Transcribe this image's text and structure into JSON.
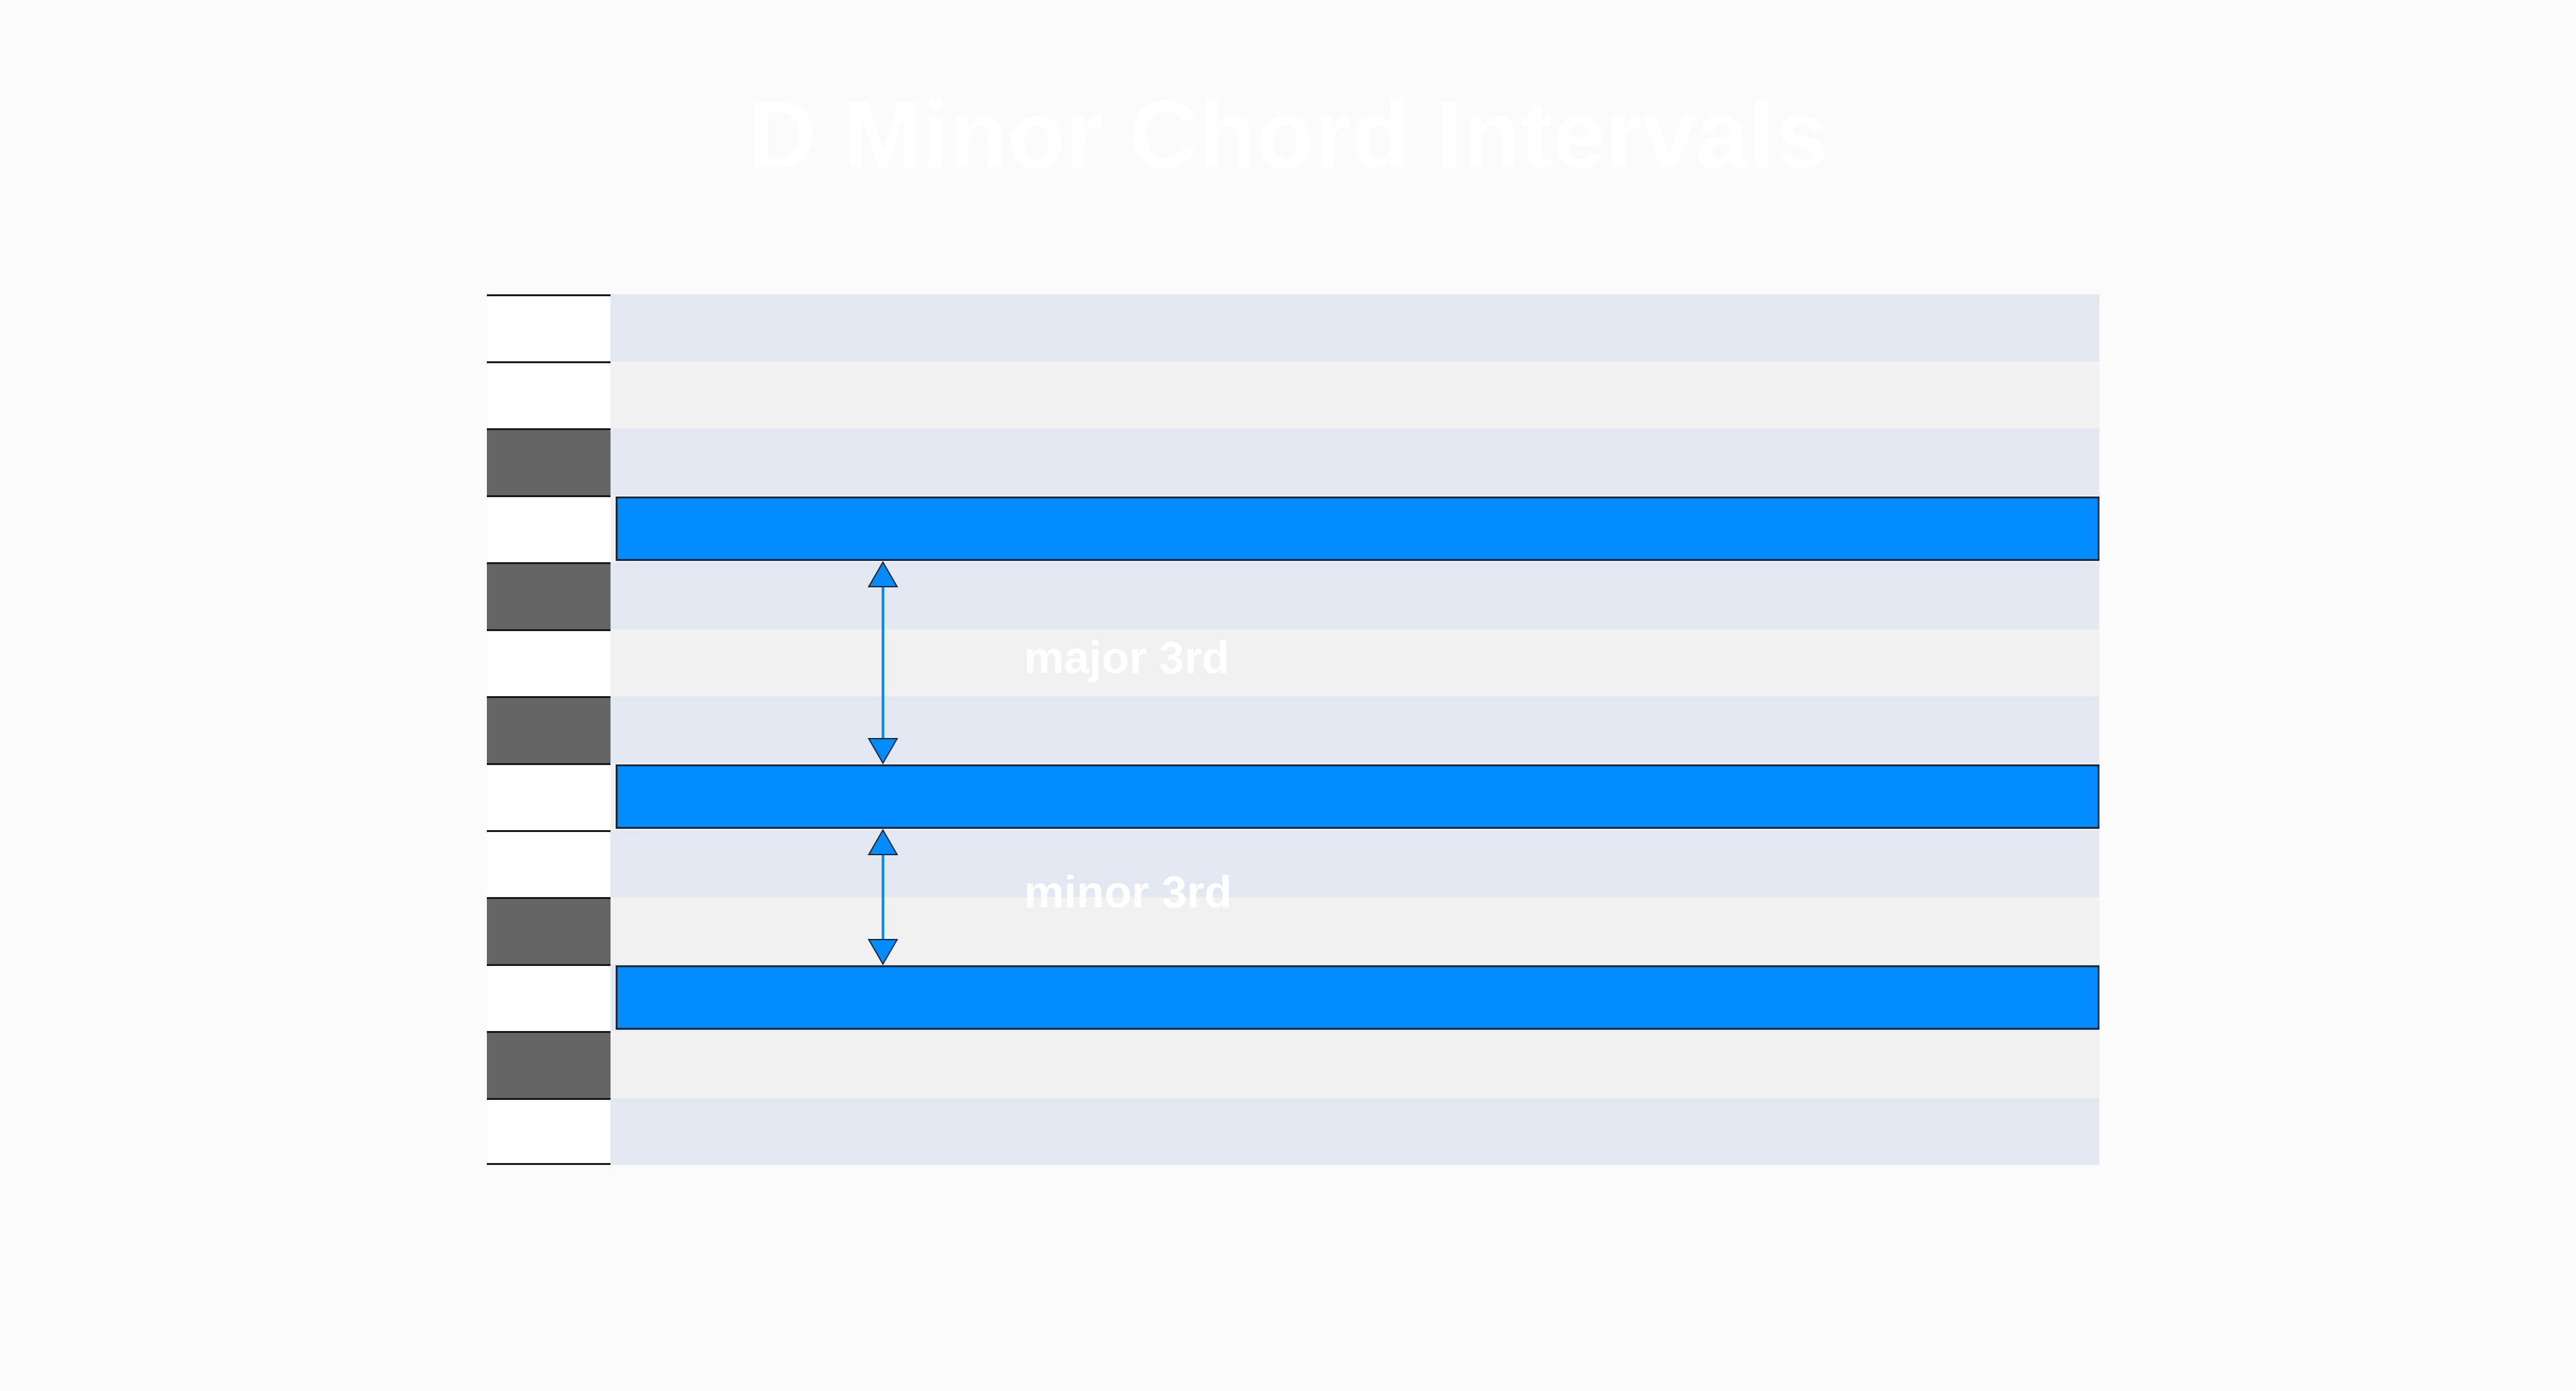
{
  "title": "D Minor Chord Intervals",
  "colors": {
    "background": "#fbfbfb",
    "note_fill": "#038cff",
    "lane_tone_a": "#e3e7f1",
    "lane_tone_b": "#f1f1f1",
    "white_key": "#ffffff",
    "black_key": "#656565",
    "label_text": "#ffffff"
  },
  "piano_roll": {
    "keys": [
      {
        "color": "white"
      },
      {
        "color": "white"
      },
      {
        "color": "black"
      },
      {
        "color": "white"
      },
      {
        "color": "black"
      },
      {
        "color": "white"
      },
      {
        "color": "black"
      },
      {
        "color": "white"
      },
      {
        "color": "white"
      },
      {
        "color": "black"
      },
      {
        "color": "white"
      },
      {
        "color": "black"
      },
      {
        "color": "white"
      }
    ],
    "lanes": [
      "a",
      "b",
      "a",
      "b",
      "a",
      "b",
      "a",
      "b",
      "a",
      "b",
      "a",
      "b",
      "a"
    ],
    "notes": [
      {
        "row": 3
      },
      {
        "row": 7
      },
      {
        "row": 10
      }
    ]
  },
  "intervals": [
    {
      "label": "major 3rd",
      "from_row": 3,
      "to_row": 7
    },
    {
      "label": "minor 3rd",
      "from_row": 7,
      "to_row": 10
    }
  ]
}
